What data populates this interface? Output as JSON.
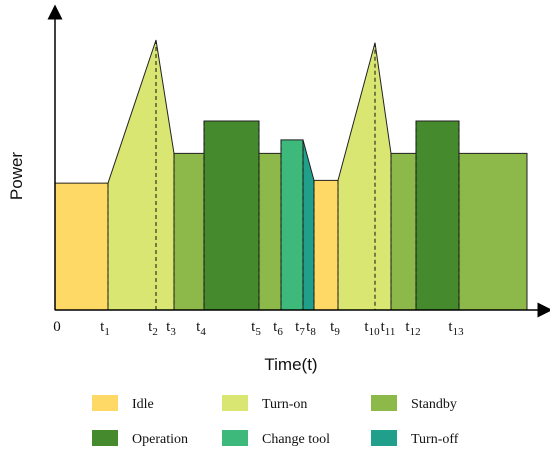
{
  "chart_data": {
    "type": "area",
    "xlabel": "Time(t)",
    "ylabel": "Power",
    "origin_label": "0",
    "ylim": [
      0,
      1
    ],
    "ticks": [
      {
        "id": "t1",
        "base": "t",
        "sub": "1",
        "x": 1
      },
      {
        "id": "t2",
        "base": "t",
        "sub": "2",
        "x": 2
      },
      {
        "id": "t3",
        "base": "t",
        "sub": "3",
        "x": 3
      },
      {
        "id": "t4",
        "base": "t",
        "sub": "4",
        "x": 4
      },
      {
        "id": "t5",
        "base": "t",
        "sub": "5",
        "x": 5
      },
      {
        "id": "t6",
        "base": "t",
        "sub": "6",
        "x": 6
      },
      {
        "id": "t7",
        "base": "t",
        "sub": "7",
        "x": 7
      },
      {
        "id": "t8",
        "base": "t",
        "sub": "8",
        "x": 8
      },
      {
        "id": "t9",
        "base": "t",
        "sub": "9",
        "x": 9
      },
      {
        "id": "t10",
        "base": "t",
        "sub": "10",
        "x": 10
      },
      {
        "id": "t11",
        "base": "t",
        "sub": "11",
        "x": 11
      },
      {
        "id": "t12",
        "base": "t",
        "sub": "12",
        "x": 12
      },
      {
        "id": "t13",
        "base": "t",
        "sub": "13",
        "x": 13
      }
    ],
    "phases": [
      {
        "state": "idle",
        "from": 0,
        "to": 1,
        "shape": "flat",
        "power": 0.47
      },
      {
        "state": "turn_on",
        "from": 1,
        "to": 3,
        "shape": "peak",
        "start": 0.47,
        "peak_at": 2,
        "peak": 1.0,
        "end": 0.58
      },
      {
        "state": "standby",
        "from": 3,
        "to": 4,
        "shape": "flat",
        "power": 0.58
      },
      {
        "state": "operation",
        "from": 4,
        "to": 5,
        "shape": "flat",
        "power": 0.7
      },
      {
        "state": "standby",
        "from": 5,
        "to": 6,
        "shape": "flat",
        "power": 0.58
      },
      {
        "state": "change_tool",
        "from": 6,
        "to": 7,
        "shape": "flat",
        "power": 0.63
      },
      {
        "state": "turn_off",
        "from": 7,
        "to": 8,
        "shape": "ramp",
        "start": 0.63,
        "end": 0.48
      },
      {
        "state": "idle",
        "from": 8,
        "to": 9,
        "shape": "flat",
        "power": 0.48
      },
      {
        "state": "turn_on",
        "from": 9,
        "to": 11,
        "shape": "peak",
        "start": 0.48,
        "peak_at": 10,
        "peak": 0.99,
        "end": 0.58
      },
      {
        "state": "standby",
        "from": 11,
        "to": 12,
        "shape": "flat",
        "power": 0.58
      },
      {
        "state": "operation",
        "from": 12,
        "to": 13,
        "shape": "flat",
        "power": 0.7
      },
      {
        "state": "standby",
        "from": 13,
        "to": 14,
        "shape": "flat",
        "power": 0.58
      }
    ],
    "dashed_lines_at": [
      1,
      2,
      3,
      4,
      5,
      6,
      7,
      8,
      9,
      10,
      11,
      12,
      13
    ],
    "legend": [
      {
        "key": "idle",
        "label": "Idle",
        "color": "#FFD966"
      },
      {
        "key": "turn_on",
        "label": "Turn-on",
        "color": "#D9E672"
      },
      {
        "key": "standby",
        "label": "Standby",
        "color": "#8DB84A"
      },
      {
        "key": "operation",
        "label": "Operation",
        "color": "#458A2C"
      },
      {
        "key": "change_tool",
        "label": "Change tool",
        "color": "#3DBA7B"
      },
      {
        "key": "turn_off",
        "label": "Turn-off",
        "color": "#20A08A"
      }
    ],
    "legend_placement": "bottom",
    "grid": false
  }
}
